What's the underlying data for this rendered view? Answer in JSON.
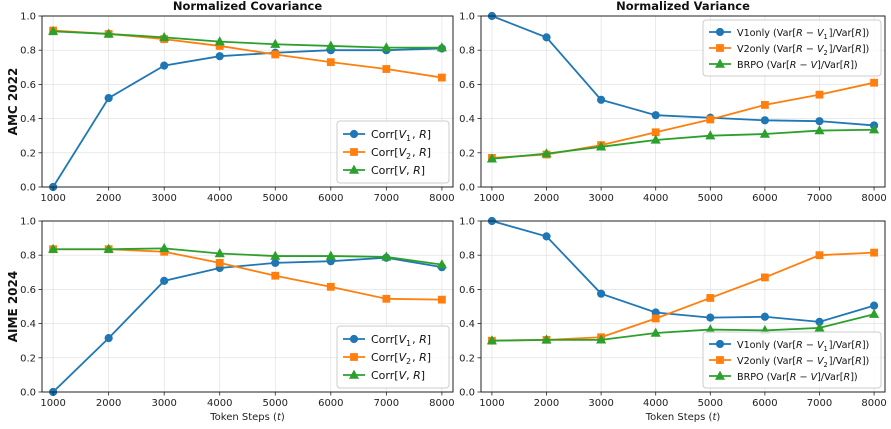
{
  "figure": {
    "col_titles": [
      "Normalized Covariance",
      "Normalized Variance"
    ],
    "row_labels": [
      "AMC 2022",
      "AIME 2024"
    ],
    "x_label": "Token Steps (t)"
  },
  "colors": {
    "blue": "#1f77b4",
    "orange": "#ff7f0e",
    "green": "#2ca02c"
  },
  "chart_data": [
    {
      "type": "line",
      "id": "amc-cov",
      "title": "Normalized Covariance",
      "row_label": "AMC 2022",
      "xlabel": "",
      "ylabel": "",
      "x": [
        1000,
        2000,
        3000,
        4000,
        5000,
        6000,
        7000,
        8000
      ],
      "xlim": [
        800,
        8200
      ],
      "ylim": [
        0,
        1.0
      ],
      "grid": true,
      "legend_position": "lower-right",
      "series": [
        {
          "name": "Corr[V1, R]",
          "color": "blue",
          "marker": "circle",
          "values": [
            0.0,
            0.52,
            0.71,
            0.765,
            0.785,
            0.8,
            0.8,
            0.81
          ]
        },
        {
          "name": "Corr[V2, R]",
          "color": "orange",
          "marker": "square",
          "values": [
            0.915,
            0.895,
            0.865,
            0.825,
            0.775,
            0.73,
            0.69,
            0.64
          ]
        },
        {
          "name": "Corr[V, R]",
          "color": "green",
          "marker": "triangle",
          "values": [
            0.91,
            0.895,
            0.875,
            0.85,
            0.835,
            0.825,
            0.815,
            0.815
          ]
        }
      ]
    },
    {
      "type": "line",
      "id": "amc-var",
      "title": "Normalized Variance",
      "row_label": "AMC 2022",
      "xlabel": "",
      "ylabel": "",
      "x": [
        1000,
        2000,
        3000,
        4000,
        5000,
        6000,
        7000,
        8000
      ],
      "xlim": [
        800,
        8200
      ],
      "ylim": [
        0,
        1.0
      ],
      "grid": true,
      "legend_position": "upper-right",
      "series": [
        {
          "name": "V1only (Var[R − V1]/Var[R])",
          "color": "blue",
          "marker": "circle",
          "values": [
            1.0,
            0.875,
            0.51,
            0.42,
            0.405,
            0.39,
            0.385,
            0.36
          ]
        },
        {
          "name": "V2only (Var[R − V2]/Var[R])",
          "color": "orange",
          "marker": "square",
          "values": [
            0.17,
            0.19,
            0.245,
            0.32,
            0.395,
            0.48,
            0.54,
            0.61
          ]
        },
        {
          "name": "BRPO (Var[R − V]/Var[R])",
          "color": "green",
          "marker": "triangle",
          "values": [
            0.165,
            0.195,
            0.235,
            0.275,
            0.3,
            0.31,
            0.33,
            0.335
          ]
        }
      ]
    },
    {
      "type": "line",
      "id": "aime-cov",
      "title": "",
      "row_label": "AIME 2024",
      "xlabel": "Token Steps (t)",
      "ylabel": "",
      "x": [
        1000,
        2000,
        3000,
        4000,
        5000,
        6000,
        7000,
        8000
      ],
      "xlim": [
        800,
        8200
      ],
      "ylim": [
        0,
        1.0
      ],
      "grid": true,
      "legend_position": "lower-right",
      "series": [
        {
          "name": "Corr[V1, R]",
          "color": "blue",
          "marker": "circle",
          "values": [
            0.0,
            0.315,
            0.65,
            0.725,
            0.755,
            0.765,
            0.785,
            0.73
          ]
        },
        {
          "name": "Corr[V2, R]",
          "color": "orange",
          "marker": "square",
          "values": [
            0.835,
            0.835,
            0.82,
            0.755,
            0.68,
            0.615,
            0.545,
            0.54
          ]
        },
        {
          "name": "Corr[V, R]",
          "color": "green",
          "marker": "triangle",
          "values": [
            0.835,
            0.835,
            0.84,
            0.81,
            0.795,
            0.795,
            0.79,
            0.745
          ]
        }
      ]
    },
    {
      "type": "line",
      "id": "aime-var",
      "title": "",
      "row_label": "AIME 2024",
      "xlabel": "Token Steps (t)",
      "ylabel": "",
      "x": [
        1000,
        2000,
        3000,
        4000,
        5000,
        6000,
        7000,
        8000
      ],
      "xlim": [
        800,
        8200
      ],
      "ylim": [
        0,
        1.0
      ],
      "grid": true,
      "legend_position": "lower-right",
      "series": [
        {
          "name": "V1only (Var[R − V1]/Var[R])",
          "color": "blue",
          "marker": "circle",
          "values": [
            1.0,
            0.91,
            0.575,
            0.465,
            0.435,
            0.44,
            0.41,
            0.505
          ]
        },
        {
          "name": "V2only (Var[R − V2]/Var[R])",
          "color": "orange",
          "marker": "square",
          "values": [
            0.3,
            0.305,
            0.32,
            0.43,
            0.55,
            0.67,
            0.8,
            0.815
          ]
        },
        {
          "name": "BRPO (Var[R − V]/Var[R])",
          "color": "green",
          "marker": "triangle",
          "values": [
            0.3,
            0.305,
            0.305,
            0.345,
            0.365,
            0.36,
            0.375,
            0.455
          ]
        }
      ]
    }
  ]
}
